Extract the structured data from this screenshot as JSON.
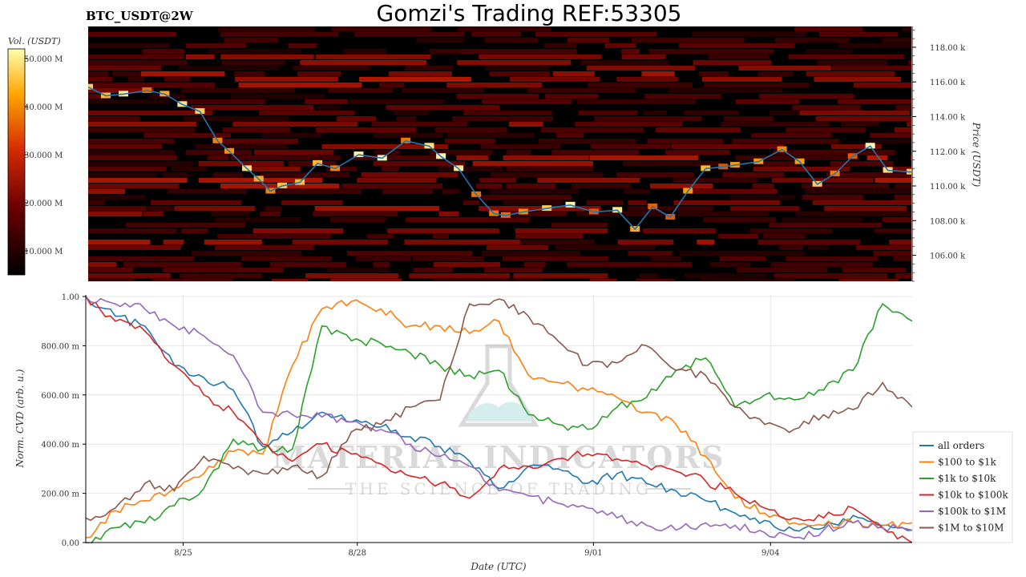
{
  "header": {
    "title": "Gomzi's Trading REF:53305",
    "pair": "BTC_USDT@2W"
  },
  "watermark": {
    "line1": "MATERIAL INDICATORS",
    "line2": "THE SCIENCE OF TRADING"
  },
  "colors": {
    "price_line": "#1f77b4",
    "heatmap_bg": "#000000"
  },
  "chart_data": [
    {
      "type": "heatmap",
      "subtype": "orderbook-liquidity-with-price",
      "colorbar": {
        "label": "Vol. (USDT)",
        "ticks": [
          "10.000 M",
          "20.000 M",
          "30.000 M",
          "40.000 M",
          "50.000 M"
        ],
        "tick_values": [
          10,
          20,
          30,
          40,
          50
        ]
      },
      "ylabel": "Price (USDT)",
      "ylim": [
        104.5,
        119.2
      ],
      "yticks": [
        106,
        108,
        110,
        112,
        114,
        116,
        118
      ],
      "ytick_labels": [
        "106.00 k",
        "108.00 k",
        "110.00 k",
        "112.00 k",
        "114.00 k",
        "116.00 k",
        "118.00 k"
      ],
      "xlim": [
        0,
        14
      ],
      "price_series": {
        "t": [
          0,
          0.3,
          0.6,
          1.0,
          1.3,
          1.6,
          1.9,
          2.2,
          2.4,
          2.7,
          2.9,
          3.1,
          3.3,
          3.6,
          3.9,
          4.2,
          4.6,
          5.0,
          5.4,
          5.8,
          6.0,
          6.3,
          6.6,
          6.9,
          7.1,
          7.4,
          7.8,
          8.2,
          8.6,
          9.0,
          9.3,
          9.6,
          9.9,
          10.2,
          10.5,
          10.8,
          11.0,
          11.4,
          11.8,
          12.1,
          12.4,
          12.7,
          13.0,
          13.3,
          13.6,
          14.0
        ],
        "price": [
          115.7,
          115.2,
          115.3,
          115.5,
          115.3,
          114.7,
          114.3,
          112.6,
          112.0,
          111.0,
          110.4,
          109.7,
          110.0,
          110.2,
          111.3,
          111.0,
          111.8,
          111.6,
          112.6,
          112.3,
          111.7,
          111.0,
          109.5,
          108.4,
          108.3,
          108.5,
          108.7,
          108.9,
          108.5,
          108.6,
          107.5,
          108.8,
          108.2,
          109.7,
          111.0,
          111.1,
          111.2,
          111.4,
          112.1,
          111.4,
          110.1,
          110.7,
          111.7,
          112.3,
          110.9,
          110.8
        ]
      }
    },
    {
      "type": "line",
      "xlabel": "Date (UTC)",
      "ylabel": "Norm. CVD (arb. u.)",
      "ylim": [
        0,
        1
      ],
      "yticks": [
        0,
        0.2,
        0.4,
        0.6,
        0.8,
        1.0
      ],
      "ytick_labels": [
        "0.00",
        "200.00 m",
        "400.00 m",
        "600.00 m",
        "800.00 m",
        "1.00"
      ],
      "xlim": [
        0,
        14
      ],
      "xtick_values": [
        1.65,
        4.6,
        8.6,
        11.6
      ],
      "xtick_labels": [
        "8/25",
        "8/28",
        "9/01",
        "9/04"
      ],
      "x": [
        0,
        0.5,
        1.0,
        1.5,
        2.0,
        2.5,
        3.0,
        3.5,
        4.0,
        4.5,
        5.0,
        5.5,
        6.0,
        6.5,
        7.0,
        7.5,
        8.0,
        8.5,
        9.0,
        9.5,
        10.0,
        10.5,
        11.0,
        11.5,
        12.0,
        12.5,
        13.0,
        13.5,
        14.0
      ],
      "series": [
        {
          "name": "all orders",
          "color": "#1f77b4",
          "values": [
            1.0,
            0.92,
            0.88,
            0.72,
            0.67,
            0.62,
            0.39,
            0.45,
            0.53,
            0.49,
            0.47,
            0.43,
            0.39,
            0.33,
            0.22,
            0.31,
            0.3,
            0.24,
            0.28,
            0.24,
            0.21,
            0.17,
            0.12,
            0.09,
            0.05,
            0.06,
            0.11,
            0.07,
            0.05
          ]
        },
        {
          "name": "$100 to $1k",
          "color": "#ff7f0e",
          "values": [
            0.02,
            0.13,
            0.17,
            0.22,
            0.28,
            0.37,
            0.36,
            0.72,
            0.95,
            0.98,
            0.95,
            0.88,
            0.88,
            0.85,
            0.9,
            0.68,
            0.65,
            0.62,
            0.59,
            0.53,
            0.48,
            0.35,
            0.18,
            0.12,
            0.08,
            0.07,
            0.08,
            0.07,
            0.08
          ]
        },
        {
          "name": "$1k to $10k",
          "color": "#2ca02c",
          "values": [
            0.0,
            0.06,
            0.08,
            0.15,
            0.22,
            0.42,
            0.38,
            0.38,
            0.88,
            0.82,
            0.81,
            0.77,
            0.72,
            0.68,
            0.7,
            0.52,
            0.48,
            0.46,
            0.55,
            0.59,
            0.7,
            0.75,
            0.55,
            0.6,
            0.58,
            0.62,
            0.7,
            0.97,
            0.9
          ]
        },
        {
          "name": "$10k to $100k",
          "color": "#d62728",
          "values": [
            1.0,
            0.9,
            0.86,
            0.72,
            0.6,
            0.53,
            0.4,
            0.33,
            0.4,
            0.36,
            0.32,
            0.27,
            0.24,
            0.18,
            0.3,
            0.31,
            0.34,
            0.36,
            0.34,
            0.31,
            0.29,
            0.25,
            0.2,
            0.14,
            0.1,
            0.1,
            0.14,
            0.06,
            0.0
          ]
        },
        {
          "name": "$100k to $1M",
          "color": "#9467bd",
          "values": [
            1.0,
            0.97,
            0.95,
            0.88,
            0.84,
            0.76,
            0.53,
            0.52,
            0.51,
            0.49,
            0.46,
            0.4,
            0.35,
            0.31,
            0.21,
            0.19,
            0.16,
            0.14,
            0.1,
            0.07,
            0.05,
            0.08,
            0.07,
            0.04,
            0.02,
            0.05,
            0.08,
            0.06,
            0.05
          ]
        },
        {
          "name": "$1M to $10M",
          "color": "#8c564b",
          "values": [
            0.1,
            0.14,
            0.24,
            0.21,
            0.35,
            0.3,
            0.28,
            0.31,
            0.27,
            0.45,
            0.48,
            0.55,
            0.58,
            0.97,
            0.99,
            0.92,
            0.82,
            0.72,
            0.73,
            0.8,
            0.7,
            0.68,
            0.55,
            0.48,
            0.46,
            0.52,
            0.54,
            0.65,
            0.55
          ]
        }
      ]
    }
  ]
}
